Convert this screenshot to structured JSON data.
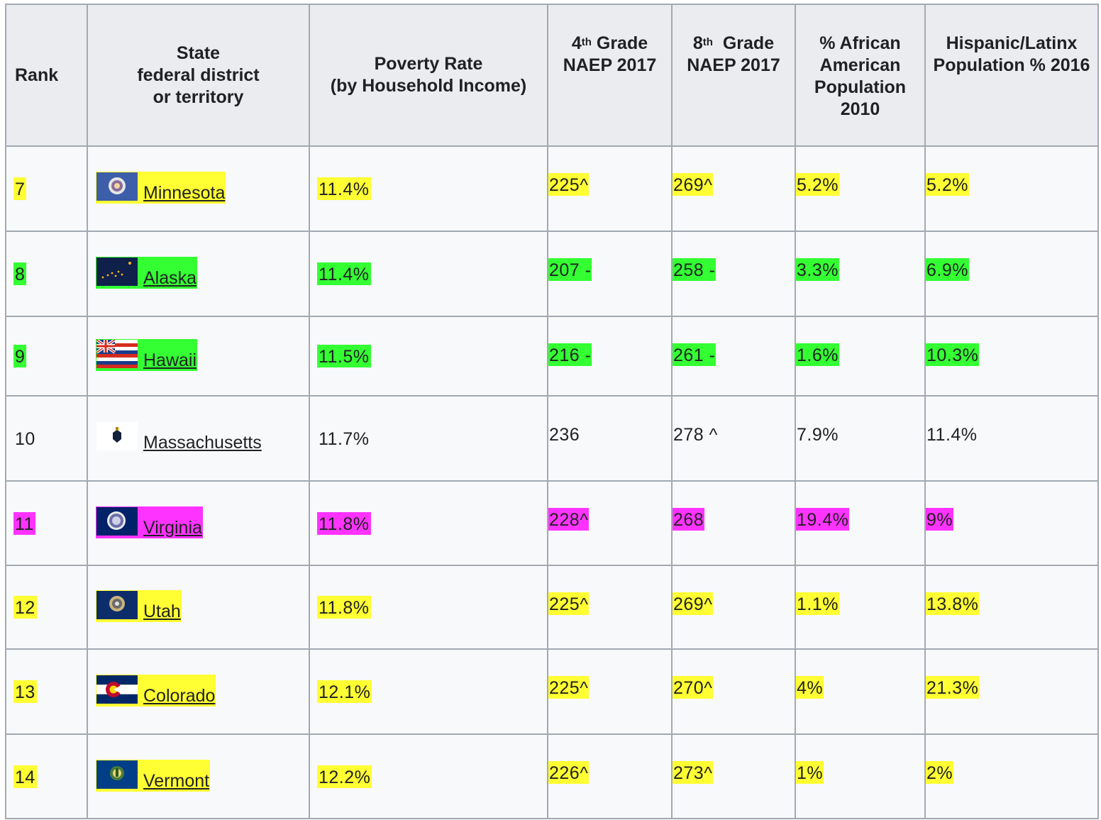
{
  "colors": {
    "yellow": "#ffff33",
    "green": "#33ff33",
    "magenta": "#ff33ff",
    "header_bg": "#eaecf0",
    "cell_bg": "#f8f9fa",
    "border": "#a2a9b1"
  },
  "headers": {
    "rank": "Rank",
    "state_l1": "State",
    "state_l2": "federal district",
    "state_l3": "or territory",
    "poverty_l1": "Poverty Rate",
    "poverty_l2": "(by Household Income)",
    "g4_num": "4",
    "g4_sup": "th",
    "g4_rest": " Grade",
    "g4_l2": "NAEP 2017",
    "g8_num": "8",
    "g8_sup": "th",
    "g8_rest": "  Grade",
    "g8_l2": "NAEP 2017",
    "afr_l1": "% African",
    "afr_l2": "American",
    "afr_l3": "Population",
    "afr_l4": "2010",
    "hisp_l1": "Hispanic/Latinx",
    "hisp_l2": "Population % 2016"
  },
  "rows": [
    {
      "rank": "7",
      "state": "Minnesota",
      "poverty": "11.4%",
      "g4": "225^",
      "g8": "269^",
      "afr": "5.2%",
      "hisp": "5.2%",
      "highlight": "yellow",
      "flag_icon": "minnesota-flag-icon"
    },
    {
      "rank": "8",
      "state": "Alaska",
      "poverty": "11.4%",
      "g4": "207 -",
      "g8": "258 -",
      "afr": "3.3%",
      "hisp": "6.9%",
      "highlight": "green",
      "flag_icon": "alaska-flag-icon"
    },
    {
      "rank": "9",
      "state": "Hawaii",
      "poverty": "11.5%",
      "g4": "216 -",
      "g8": "261 -",
      "afr": "1.6%",
      "hisp": "10.3%",
      "highlight": "green",
      "flag_icon": "hawaii-flag-icon"
    },
    {
      "rank": "10",
      "state": "Massachusetts",
      "poverty": "11.7%",
      "g4": "236",
      "g8": "278 ^",
      "afr": "7.9%",
      "hisp": "11.4%",
      "highlight": "none",
      "flag_icon": "massachusetts-flag-icon"
    },
    {
      "rank": "11",
      "state": "Virginia",
      "poverty": "11.8%",
      "g4": "228^",
      "g8": "268",
      "afr": "19.4%",
      "hisp": "9%",
      "highlight": "magenta",
      "flag_icon": "virginia-flag-icon"
    },
    {
      "rank": "12",
      "state": "Utah",
      "poverty": "11.8%",
      "g4": "225^",
      "g8": "269^",
      "afr": "1.1%",
      "hisp": "13.8%",
      "highlight": "yellow",
      "flag_icon": "utah-flag-icon"
    },
    {
      "rank": "13",
      "state": "Colorado",
      "poverty": "12.1%",
      "g4": "225^",
      "g8": "270^",
      "afr": "4%",
      "hisp": "21.3%",
      "highlight": "yellow",
      "flag_icon": "colorado-flag-icon"
    },
    {
      "rank": "14",
      "state": "Vermont",
      "poverty": "12.2%",
      "g4": "226^",
      "g8": "273^",
      "afr": "1%",
      "hisp": "2%",
      "highlight": "yellow",
      "flag_icon": "vermont-flag-icon"
    }
  ]
}
